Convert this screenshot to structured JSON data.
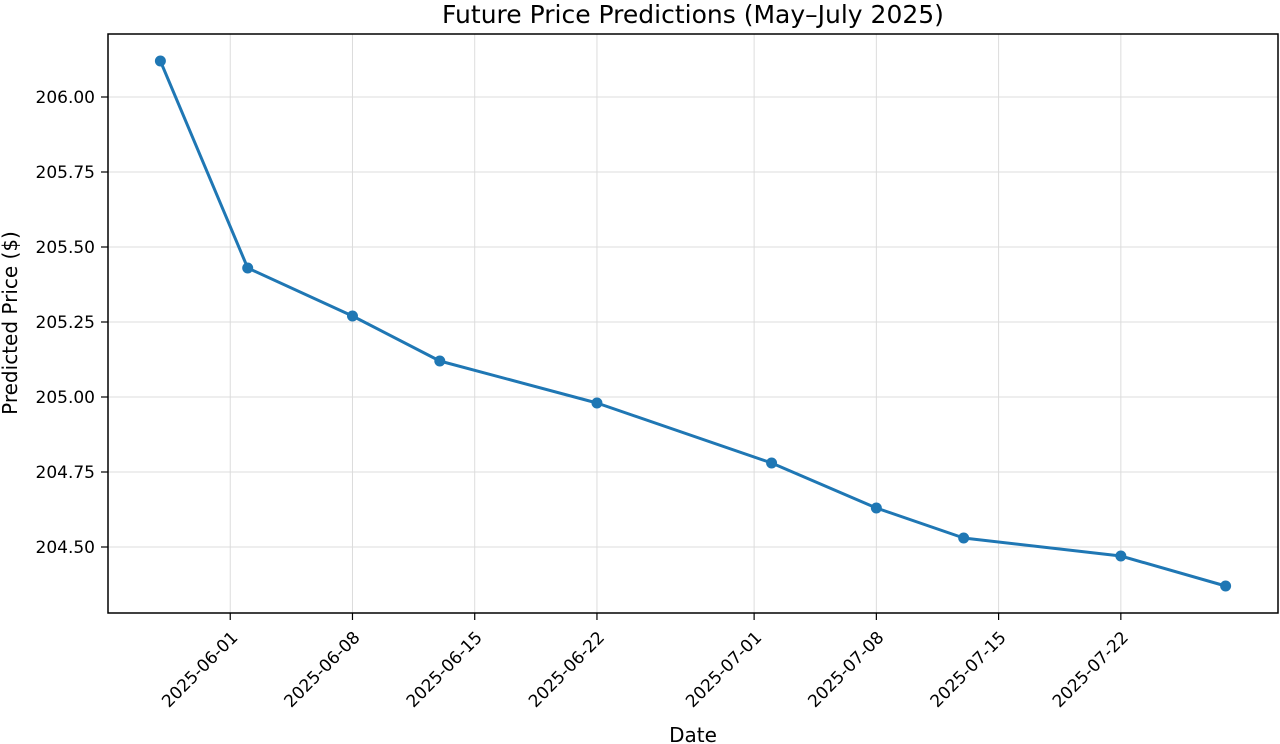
{
  "chart_data": {
    "type": "line",
    "title": "Future Price Predictions (May–July 2025)",
    "xlabel": "Date",
    "ylabel": "Predicted Price ($)",
    "x": [
      "2025-05-28",
      "2025-06-02",
      "2025-06-08",
      "2025-06-13",
      "2025-06-22",
      "2025-07-02",
      "2025-07-08",
      "2025-07-13",
      "2025-07-22",
      "2025-07-28"
    ],
    "series": [
      {
        "values": [
          206.12,
          205.43,
          205.27,
          205.12,
          204.98,
          204.78,
          204.63,
          204.53,
          204.47,
          204.37
        ],
        "color": "#1f77b4",
        "marker": "circle"
      }
    ],
    "xticks": [
      "2025-06-01",
      "2025-06-08",
      "2025-06-15",
      "2025-06-22",
      "2025-07-01",
      "2025-07-08",
      "2025-07-15",
      "2025-07-22"
    ],
    "yticks": [
      204.5,
      204.75,
      205.0,
      205.25,
      205.5,
      205.75,
      206.0
    ],
    "ytick_labels": [
      "204.50",
      "204.75",
      "205.00",
      "205.25",
      "205.50",
      "205.75",
      "206.00"
    ],
    "xlim": [
      "2025-05-25",
      "2025-07-31"
    ],
    "ylim": [
      204.28,
      206.21
    ],
    "grid": true,
    "x_tick_rotation": 45,
    "legend": "none"
  }
}
